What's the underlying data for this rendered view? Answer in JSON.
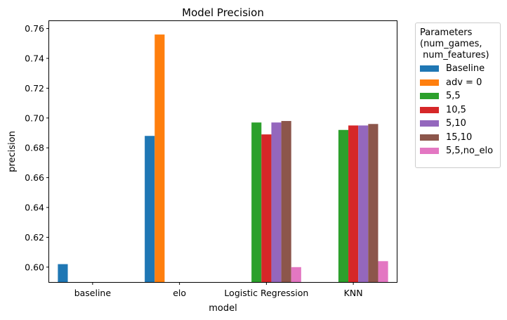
{
  "chart_data": {
    "type": "bar",
    "title": "Model Precision",
    "xlabel": "model",
    "ylabel": "precision",
    "categories": [
      "baseline",
      "elo",
      "Logistic Regression",
      "KNN"
    ],
    "ylim": [
      0.59,
      0.765
    ],
    "yticks": [
      "0.60",
      "0.62",
      "0.64",
      "0.66",
      "0.68",
      "0.70",
      "0.72",
      "0.74",
      "0.76"
    ],
    "legend_title": "Parameters\n(num_games,\n num_features)",
    "legend_position": "outside-right",
    "grid": false,
    "series": [
      {
        "name": "Baseline",
        "color": "#1f77b4",
        "values": [
          0.602,
          0.688,
          null,
          null
        ]
      },
      {
        "name": "adv = 0",
        "color": "#ff7f0e",
        "values": [
          null,
          0.756,
          null,
          null
        ]
      },
      {
        "name": "5,5",
        "color": "#2ca02c",
        "values": [
          null,
          null,
          0.697,
          0.692
        ]
      },
      {
        "name": "10,5",
        "color": "#d62728",
        "values": [
          null,
          null,
          0.689,
          0.695
        ]
      },
      {
        "name": "5,10",
        "color": "#9467bd",
        "values": [
          null,
          null,
          0.697,
          0.695
        ]
      },
      {
        "name": "15,10",
        "color": "#8c564b",
        "values": [
          null,
          null,
          0.698,
          0.696
        ]
      },
      {
        "name": "5,5,no_elo",
        "color": "#e377c2",
        "values": [
          null,
          null,
          0.6,
          0.604
        ]
      }
    ]
  }
}
